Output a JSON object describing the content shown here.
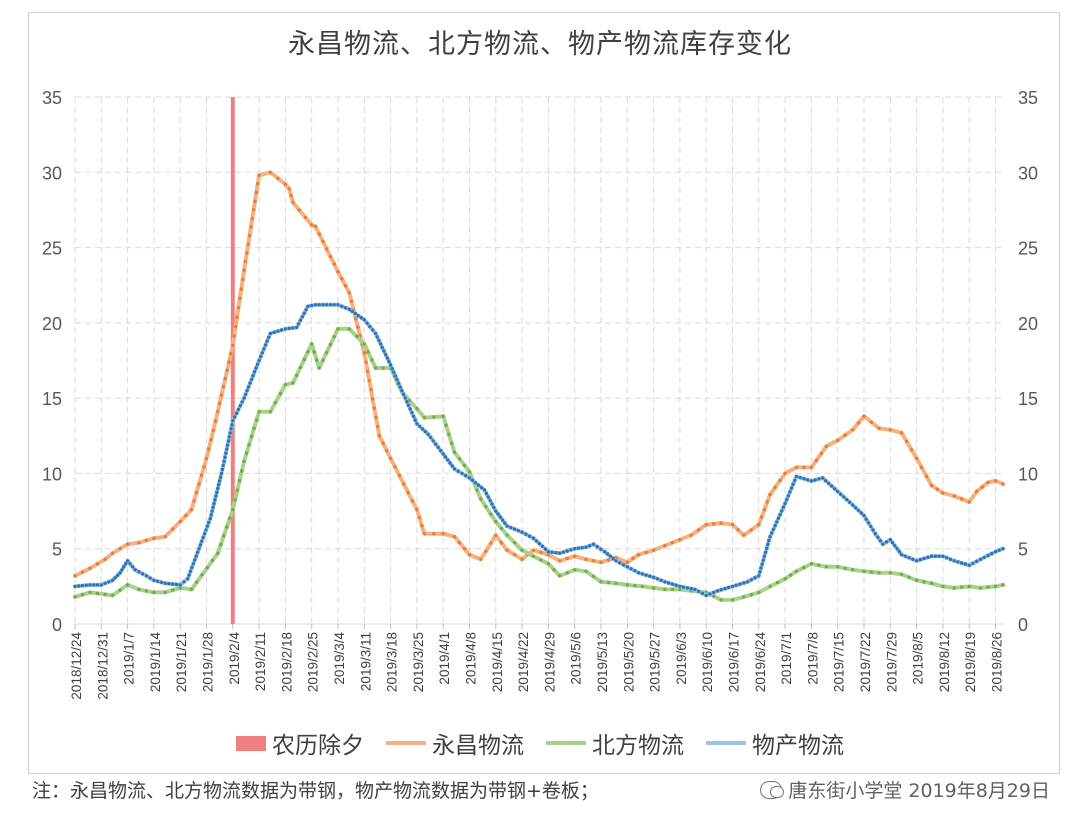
{
  "title": "永昌物流、北方物流、物产物流库存变化",
  "footnote": "注：永昌物流、北方物流数据为带钢，物产物流数据为带钢+卷板；",
  "watermark": "唐东街小学堂 2019年8月29日",
  "colors": {
    "yongchang_line": "#f4b183",
    "yongchang_dot": "#ed7d31",
    "beifang_line": "#a9d18e",
    "beifang_dot": "#70ad47",
    "wuchan_line": "#9dc3e6",
    "wuchan_dot": "#2e75b6",
    "eve_marker": "#f08080",
    "grid": "#d9d9d9"
  },
  "chart_data": {
    "type": "line",
    "title": "永昌物流、北方物流、物产物流库存变化",
    "x_start": "2018-12-24",
    "x_end": "2019-08-28",
    "ylim": [
      0,
      35
    ],
    "yticks": [
      0,
      5,
      10,
      15,
      20,
      25,
      30,
      35
    ],
    "grid": true,
    "legend_position": "bottom",
    "xticks": [
      "2018/12/24",
      "2018/12/31",
      "2019/1/7",
      "2019/1/14",
      "2019/1/21",
      "2019/1/28",
      "2019/2/4",
      "2019/2/11",
      "2019/2/18",
      "2019/2/25",
      "2019/3/4",
      "2019/3/11",
      "2019/3/18",
      "2019/3/25",
      "2019/4/1",
      "2019/4/8",
      "2019/4/15",
      "2019/4/22",
      "2019/4/29",
      "2019/5/6",
      "2019/5/13",
      "2019/5/20",
      "2019/5/27",
      "2019/6/3",
      "2019/6/10",
      "2019/6/17",
      "2019/6/24",
      "2019/7/1",
      "2019/7/8",
      "2019/7/15",
      "2019/7/22",
      "2019/7/29",
      "2019/8/5",
      "2019/8/12",
      "2019/8/19",
      "2019/8/26"
    ],
    "xtick_dates": [
      "2018-12-24",
      "2018-12-31",
      "2019-01-07",
      "2019-01-14",
      "2019-01-21",
      "2019-01-28",
      "2019-02-04",
      "2019-02-11",
      "2019-02-18",
      "2019-02-25",
      "2019-03-04",
      "2019-03-11",
      "2019-03-18",
      "2019-03-25",
      "2019-04-01",
      "2019-04-08",
      "2019-04-15",
      "2019-04-22",
      "2019-04-29",
      "2019-05-06",
      "2019-05-13",
      "2019-05-20",
      "2019-05-27",
      "2019-06-03",
      "2019-06-10",
      "2019-06-17",
      "2019-06-24",
      "2019-07-01",
      "2019-07-08",
      "2019-07-15",
      "2019-07-22",
      "2019-07-29",
      "2019-08-05",
      "2019-08-12",
      "2019-08-19",
      "2019-08-26"
    ],
    "marker": {
      "name": "农历除夕",
      "date": "2019-02-04"
    },
    "series": [
      {
        "name": "永昌物流",
        "style": "sparse",
        "points": [
          [
            "2018-12-24",
            3.2
          ],
          [
            "2018-12-28",
            3.7
          ],
          [
            "2019-01-01",
            4.3
          ],
          [
            "2019-01-03",
            4.7
          ],
          [
            "2019-01-07",
            5.3
          ],
          [
            "2019-01-10",
            5.4
          ],
          [
            "2019-01-14",
            5.7
          ],
          [
            "2019-01-17",
            5.8
          ],
          [
            "2019-01-21",
            6.8
          ],
          [
            "2019-01-24",
            7.6
          ],
          [
            "2019-01-28",
            11.0
          ],
          [
            "2019-01-31",
            14.1
          ],
          [
            "2019-02-04",
            18.5
          ],
          [
            "2019-02-07",
            23.5
          ],
          [
            "2019-02-11",
            29.8
          ],
          [
            "2019-02-14",
            30.0
          ],
          [
            "2019-02-18",
            29.2
          ],
          [
            "2019-02-19",
            28.9
          ],
          [
            "2019-02-20",
            28.0
          ],
          [
            "2019-02-25",
            26.5
          ],
          [
            "2019-02-26",
            26.4
          ],
          [
            "2019-03-04",
            23.4
          ],
          [
            "2019-03-07",
            22.0
          ],
          [
            "2019-03-11",
            18.0
          ],
          [
            "2019-03-15",
            12.5
          ],
          [
            "2019-03-18",
            11.0
          ],
          [
            "2019-03-25",
            7.6
          ],
          [
            "2019-03-27",
            6.0
          ],
          [
            "2019-04-01",
            6.0
          ],
          [
            "2019-04-04",
            5.8
          ],
          [
            "2019-04-08",
            4.6
          ],
          [
            "2019-04-11",
            4.3
          ],
          [
            "2019-04-15",
            5.9
          ],
          [
            "2019-04-18",
            4.9
          ],
          [
            "2019-04-22",
            4.3
          ],
          [
            "2019-04-25",
            4.9
          ],
          [
            "2019-04-29",
            4.6
          ],
          [
            "2019-05-02",
            4.2
          ],
          [
            "2019-05-06",
            4.5
          ],
          [
            "2019-05-09",
            4.3
          ],
          [
            "2019-05-13",
            4.1
          ],
          [
            "2019-05-17",
            4.4
          ],
          [
            "2019-05-20",
            4.1
          ],
          [
            "2019-05-23",
            4.6
          ],
          [
            "2019-05-27",
            4.9
          ],
          [
            "2019-05-30",
            5.2
          ],
          [
            "2019-06-03",
            5.6
          ],
          [
            "2019-06-06",
            5.9
          ],
          [
            "2019-06-10",
            6.6
          ],
          [
            "2019-06-14",
            6.7
          ],
          [
            "2019-06-17",
            6.6
          ],
          [
            "2019-06-20",
            5.9
          ],
          [
            "2019-06-24",
            6.6
          ],
          [
            "2019-06-27",
            8.6
          ],
          [
            "2019-07-01",
            10.0
          ],
          [
            "2019-07-04",
            10.4
          ],
          [
            "2019-07-08",
            10.4
          ],
          [
            "2019-07-12",
            11.8
          ],
          [
            "2019-07-15",
            12.2
          ],
          [
            "2019-07-19",
            12.9
          ],
          [
            "2019-07-22",
            13.8
          ],
          [
            "2019-07-26",
            13.0
          ],
          [
            "2019-07-29",
            12.9
          ],
          [
            "2019-08-01",
            12.7
          ],
          [
            "2019-08-05",
            11.0
          ],
          [
            "2019-08-09",
            9.2
          ],
          [
            "2019-08-12",
            8.7
          ],
          [
            "2019-08-15",
            8.5
          ],
          [
            "2019-08-19",
            8.1
          ],
          [
            "2019-08-21",
            8.8
          ],
          [
            "2019-08-24",
            9.4
          ],
          [
            "2019-08-26",
            9.5
          ],
          [
            "2019-08-28",
            9.3
          ]
        ]
      },
      {
        "name": "北方物流",
        "style": "sparse",
        "points": [
          [
            "2018-12-24",
            1.8
          ],
          [
            "2018-12-28",
            2.1
          ],
          [
            "2019-01-03",
            1.9
          ],
          [
            "2019-01-07",
            2.6
          ],
          [
            "2019-01-10",
            2.3
          ],
          [
            "2019-01-14",
            2.1
          ],
          [
            "2019-01-17",
            2.1
          ],
          [
            "2019-01-21",
            2.4
          ],
          [
            "2019-01-24",
            2.3
          ],
          [
            "2019-01-31",
            4.7
          ],
          [
            "2019-02-04",
            7.6
          ],
          [
            "2019-02-07",
            10.8
          ],
          [
            "2019-02-11",
            14.1
          ],
          [
            "2019-02-14",
            14.1
          ],
          [
            "2019-02-18",
            15.9
          ],
          [
            "2019-02-20",
            16.0
          ],
          [
            "2019-02-25",
            18.6
          ],
          [
            "2019-02-27",
            17.0
          ],
          [
            "2019-03-04",
            19.6
          ],
          [
            "2019-03-07",
            19.6
          ],
          [
            "2019-03-11",
            18.6
          ],
          [
            "2019-03-14",
            17.0
          ],
          [
            "2019-03-18",
            17.0
          ],
          [
            "2019-03-21",
            15.4
          ],
          [
            "2019-03-25",
            14.3
          ],
          [
            "2019-03-27",
            13.7
          ],
          [
            "2019-04-01",
            13.8
          ],
          [
            "2019-04-04",
            11.4
          ],
          [
            "2019-04-08",
            10.1
          ],
          [
            "2019-04-11",
            8.3
          ],
          [
            "2019-04-15",
            6.8
          ],
          [
            "2019-04-18",
            5.9
          ],
          [
            "2019-04-22",
            4.9
          ],
          [
            "2019-04-25",
            4.5
          ],
          [
            "2019-04-29",
            4.0
          ],
          [
            "2019-05-02",
            3.2
          ],
          [
            "2019-05-06",
            3.6
          ],
          [
            "2019-05-09",
            3.5
          ],
          [
            "2019-05-13",
            2.8
          ],
          [
            "2019-05-17",
            2.7
          ],
          [
            "2019-05-20",
            2.6
          ],
          [
            "2019-05-24",
            2.5
          ],
          [
            "2019-05-27",
            2.4
          ],
          [
            "2019-05-30",
            2.3
          ],
          [
            "2019-06-03",
            2.3
          ],
          [
            "2019-06-06",
            2.2
          ],
          [
            "2019-06-10",
            2.1
          ],
          [
            "2019-06-14",
            1.6
          ],
          [
            "2019-06-17",
            1.6
          ],
          [
            "2019-06-20",
            1.8
          ],
          [
            "2019-06-24",
            2.1
          ],
          [
            "2019-06-27",
            2.5
          ],
          [
            "2019-07-01",
            3.0
          ],
          [
            "2019-07-04",
            3.5
          ],
          [
            "2019-07-08",
            4.0
          ],
          [
            "2019-07-12",
            3.8
          ],
          [
            "2019-07-15",
            3.8
          ],
          [
            "2019-07-19",
            3.6
          ],
          [
            "2019-07-22",
            3.5
          ],
          [
            "2019-07-26",
            3.4
          ],
          [
            "2019-07-29",
            3.4
          ],
          [
            "2019-08-01",
            3.3
          ],
          [
            "2019-08-05",
            2.9
          ],
          [
            "2019-08-09",
            2.7
          ],
          [
            "2019-08-12",
            2.5
          ],
          [
            "2019-08-15",
            2.4
          ],
          [
            "2019-08-19",
            2.5
          ],
          [
            "2019-08-22",
            2.4
          ],
          [
            "2019-08-26",
            2.5
          ],
          [
            "2019-08-28",
            2.6
          ]
        ]
      },
      {
        "name": "物产物流",
        "style": "dense",
        "points": [
          [
            "2018-12-24",
            2.5
          ],
          [
            "2018-12-28",
            2.6
          ],
          [
            "2018-12-31",
            2.6
          ],
          [
            "2019-01-03",
            2.9
          ],
          [
            "2019-01-05",
            3.4
          ],
          [
            "2019-01-07",
            4.2
          ],
          [
            "2019-01-09",
            3.6
          ],
          [
            "2019-01-12",
            3.2
          ],
          [
            "2019-01-14",
            2.9
          ],
          [
            "2019-01-17",
            2.7
          ],
          [
            "2019-01-21",
            2.6
          ],
          [
            "2019-01-23",
            3.0
          ],
          [
            "2019-01-26",
            5.0
          ],
          [
            "2019-01-29",
            7.0
          ],
          [
            "2019-02-01",
            10.0
          ],
          [
            "2019-02-04",
            13.5
          ],
          [
            "2019-02-07",
            15.0
          ],
          [
            "2019-02-11",
            17.5
          ],
          [
            "2019-02-14",
            19.3
          ],
          [
            "2019-02-18",
            19.6
          ],
          [
            "2019-02-21",
            19.7
          ],
          [
            "2019-02-24",
            21.1
          ],
          [
            "2019-02-26",
            21.2
          ],
          [
            "2019-03-01",
            21.2
          ],
          [
            "2019-03-04",
            21.2
          ],
          [
            "2019-03-07",
            20.9
          ],
          [
            "2019-03-11",
            20.2
          ],
          [
            "2019-03-14",
            19.3
          ],
          [
            "2019-03-18",
            17.2
          ],
          [
            "2019-03-21",
            15.5
          ],
          [
            "2019-03-25",
            13.3
          ],
          [
            "2019-03-28",
            12.6
          ],
          [
            "2019-04-01",
            11.3
          ],
          [
            "2019-04-04",
            10.3
          ],
          [
            "2019-04-08",
            9.7
          ],
          [
            "2019-04-12",
            8.9
          ],
          [
            "2019-04-15",
            7.5
          ],
          [
            "2019-04-18",
            6.5
          ],
          [
            "2019-04-22",
            6.1
          ],
          [
            "2019-04-25",
            5.7
          ],
          [
            "2019-04-29",
            4.8
          ],
          [
            "2019-05-02",
            4.7
          ],
          [
            "2019-05-06",
            5.0
          ],
          [
            "2019-05-09",
            5.1
          ],
          [
            "2019-05-11",
            5.3
          ],
          [
            "2019-05-14",
            4.8
          ],
          [
            "2019-05-17",
            4.2
          ],
          [
            "2019-05-20",
            3.8
          ],
          [
            "2019-05-23",
            3.4
          ],
          [
            "2019-05-27",
            3.1
          ],
          [
            "2019-05-30",
            2.8
          ],
          [
            "2019-06-03",
            2.5
          ],
          [
            "2019-06-07",
            2.3
          ],
          [
            "2019-06-10",
            1.9
          ],
          [
            "2019-06-13",
            2.2
          ],
          [
            "2019-06-17",
            2.5
          ],
          [
            "2019-06-21",
            2.8
          ],
          [
            "2019-06-24",
            3.2
          ],
          [
            "2019-06-27",
            5.8
          ],
          [
            "2019-07-01",
            8.0
          ],
          [
            "2019-07-04",
            9.8
          ],
          [
            "2019-07-08",
            9.5
          ],
          [
            "2019-07-11",
            9.7
          ],
          [
            "2019-07-15",
            8.8
          ],
          [
            "2019-07-19",
            7.9
          ],
          [
            "2019-07-22",
            7.2
          ],
          [
            "2019-07-25",
            6.0
          ],
          [
            "2019-07-27",
            5.3
          ],
          [
            "2019-07-29",
            5.6
          ],
          [
            "2019-08-01",
            4.6
          ],
          [
            "2019-08-05",
            4.2
          ],
          [
            "2019-08-09",
            4.5
          ],
          [
            "2019-08-12",
            4.5
          ],
          [
            "2019-08-15",
            4.2
          ],
          [
            "2019-08-19",
            3.9
          ],
          [
            "2019-08-22",
            4.3
          ],
          [
            "2019-08-26",
            4.8
          ],
          [
            "2019-08-28",
            5.0
          ]
        ]
      }
    ]
  }
}
